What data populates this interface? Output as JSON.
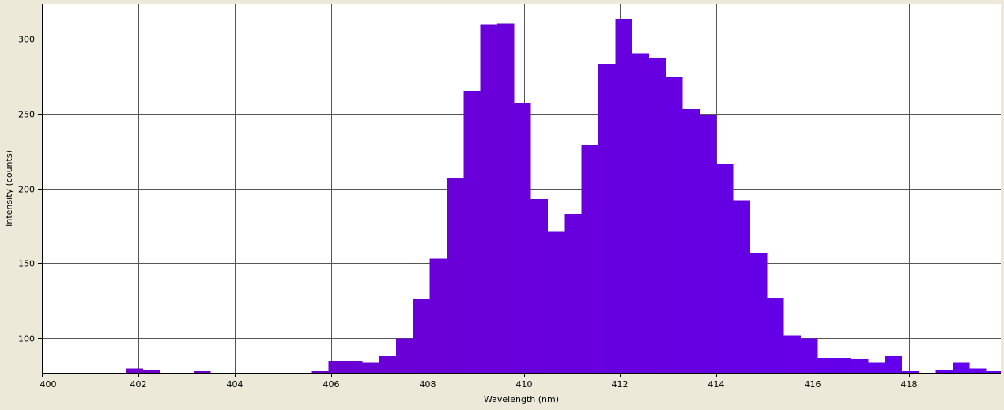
{
  "chart_data": {
    "type": "bar",
    "xlabel": "Wavelength (nm)",
    "ylabel": "Intensity (counts)",
    "xlim": [
      400,
      419.9
    ],
    "ylim": [
      77,
      323
    ],
    "grid": true,
    "bin_width": 0.35,
    "x_ticks": [
      400,
      402,
      404,
      406,
      408,
      410,
      412,
      414,
      416,
      418
    ],
    "x_tick_labels": [
      "400",
      "402",
      "404",
      "406",
      "408",
      "410",
      "412",
      "414",
      "416",
      "418"
    ],
    "y_ticks": [
      100,
      150,
      200,
      250,
      300
    ],
    "y_tick_labels": [
      "100",
      "150",
      "200",
      "250",
      "300"
    ],
    "x": [
      400,
      400.35,
      400.7,
      401.05,
      401.4,
      401.75,
      402.1,
      402.45,
      402.8,
      403.15,
      403.5,
      403.85,
      404.2,
      404.55,
      404.9,
      405.25,
      405.6,
      405.95,
      406.3,
      406.65,
      407,
      407.35,
      407.7,
      408.05,
      408.4,
      408.75,
      409.1,
      409.45,
      409.8,
      410.15,
      410.5,
      410.85,
      411.2,
      411.55,
      411.9,
      412.25,
      412.6,
      412.95,
      413.3,
      413.65,
      414,
      414.35,
      414.7,
      415.05,
      415.4,
      415.75,
      416.1,
      416.45,
      416.8,
      417.15,
      417.5,
      417.85,
      418.2,
      418.55,
      418.9,
      419.25,
      419.6
    ],
    "values": [
      77,
      77,
      77,
      77,
      77,
      80,
      79,
      77,
      77,
      78,
      77,
      77,
      77,
      77,
      77,
      77,
      78,
      85,
      85,
      84,
      88,
      100,
      126,
      153,
      207,
      265,
      309,
      310,
      257,
      193,
      171,
      183,
      229,
      283,
      313,
      290,
      287,
      274,
      253,
      249,
      216,
      192,
      157,
      127,
      102,
      100,
      87,
      87,
      86,
      84,
      88,
      78,
      77,
      79,
      84,
      80,
      78
    ],
    "colors": {
      "bar_start": "#6F00C6",
      "bar_end": "#6200F0",
      "plot_background": "#FFFFFF",
      "page_background": "#ECE9D8",
      "grid": "#555555"
    }
  }
}
